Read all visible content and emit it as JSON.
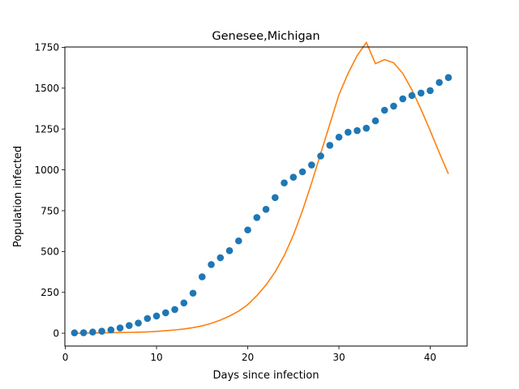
{
  "chart_data": {
    "type": "scatter",
    "title": "Genesee,Michigan",
    "xlabel": "Days since infection",
    "ylabel": "Population infected",
    "xlim": [
      -0.05,
      44.05
    ],
    "ylim": [
      -78.7,
      1752.0
    ],
    "xticks": [
      0,
      10,
      20,
      30,
      40
    ],
    "yticks": [
      0,
      250,
      500,
      750,
      1000,
      1250,
      1500,
      1750
    ],
    "grid": false,
    "colors": {
      "observed": "#1f77b4",
      "model": "#ff7f0e"
    },
    "series": [
      {
        "kind": "scatter",
        "x": [
          1,
          2,
          3,
          4,
          5,
          6,
          7,
          8,
          9,
          10,
          11,
          12,
          13,
          14,
          15,
          16,
          17,
          18,
          19,
          20,
          21,
          22,
          23,
          24,
          25,
          26,
          27,
          28,
          29,
          30,
          31,
          32,
          33,
          34,
          35,
          36,
          37,
          38,
          39,
          40,
          41,
          42
        ],
        "y": [
          2,
          3,
          7,
          12,
          20,
          32,
          47,
          62,
          90,
          105,
          125,
          145,
          185,
          245,
          345,
          420,
          462,
          505,
          565,
          632,
          708,
          758,
          830,
          920,
          955,
          988,
          1030,
          1085,
          1150,
          1200,
          1230,
          1240,
          1255,
          1300,
          1365,
          1390,
          1435,
          1455,
          1470,
          1485,
          1535,
          1565
        ]
      },
      {
        "kind": "line",
        "x": [
          1,
          2,
          3,
          4,
          5,
          6,
          7,
          8,
          9,
          10,
          11,
          12,
          13,
          14,
          15,
          16,
          17,
          18,
          19,
          20,
          21,
          22,
          23,
          24,
          25,
          26,
          27,
          28,
          29,
          30,
          31,
          32,
          33,
          34,
          35,
          36,
          37,
          38,
          39,
          40,
          41,
          42
        ],
        "y": [
          0,
          0,
          1,
          2,
          3,
          4,
          5,
          6,
          8,
          11,
          15,
          20,
          26,
          34,
          45,
          60,
          80,
          105,
          135,
          175,
          230,
          295,
          375,
          475,
          600,
          750,
          920,
          1100,
          1280,
          1460,
          1590,
          1700,
          1780,
          1650,
          1675,
          1655,
          1590,
          1490,
          1370,
          1240,
          1105,
          975
        ]
      }
    ]
  }
}
